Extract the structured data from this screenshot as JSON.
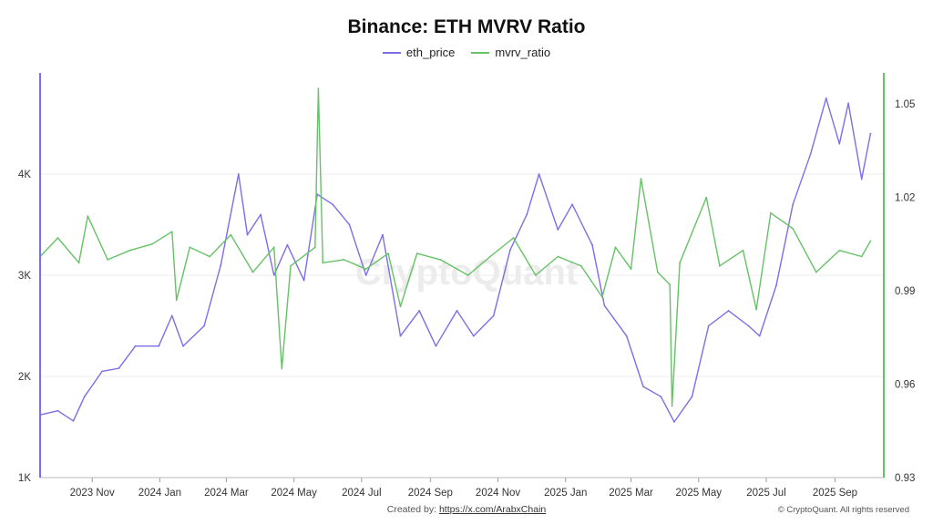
{
  "header": {
    "title": "Binance: ETH MVRV Ratio"
  },
  "legend": [
    {
      "label": "eth_price",
      "color": "#7b6fe6"
    },
    {
      "label": "mvrv_ratio",
      "color": "#66c266"
    }
  ],
  "watermark": "CryptoQuant",
  "footer": {
    "created_by_label": "Created by:",
    "created_by_link": "https://x.com/ArabxChain",
    "copyright": "© CryptoQuant. All rights reserved"
  },
  "chart_data": {
    "type": "line",
    "title": "Binance: ETH MVRV Ratio",
    "xlabel": "",
    "x_range": [
      "2023-09-15",
      "2025-10-15"
    ],
    "x_ticks": [
      "2023 Nov",
      "2024 Jan",
      "2024 Mar",
      "2024 May",
      "2024 Jul",
      "2024 Sep",
      "2024 Nov",
      "2025 Jan",
      "2025 Mar",
      "2025 May",
      "2025 Jul",
      "2025 Sep"
    ],
    "y_left": {
      "ticks": [
        "1K",
        "2K",
        "3K",
        "4K"
      ],
      "range": [
        1000,
        5000
      ]
    },
    "y_right": {
      "ticks": [
        "0.93",
        "0.96",
        "0.99",
        "1.02",
        "1.05"
      ],
      "range": [
        0.93,
        1.06
      ]
    },
    "grid": true,
    "legend_position": "top-center",
    "series": [
      {
        "name": "eth_price",
        "axis": "left",
        "color": "#7b6fe6",
        "points": [
          [
            "2023-09-15",
            1620
          ],
          [
            "2023-10-01",
            1660
          ],
          [
            "2023-10-15",
            1560
          ],
          [
            "2023-10-25",
            1800
          ],
          [
            "2023-11-10",
            2050
          ],
          [
            "2023-11-25",
            2080
          ],
          [
            "2023-12-10",
            2300
          ],
          [
            "2023-12-31",
            2300
          ],
          [
            "2024-01-12",
            2600
          ],
          [
            "2024-01-22",
            2300
          ],
          [
            "2024-02-10",
            2500
          ],
          [
            "2024-02-25",
            3100
          ],
          [
            "2024-03-12",
            4000
          ],
          [
            "2024-03-20",
            3400
          ],
          [
            "2024-04-01",
            3600
          ],
          [
            "2024-04-13",
            3000
          ],
          [
            "2024-04-25",
            3300
          ],
          [
            "2024-05-10",
            2950
          ],
          [
            "2024-05-22",
            3800
          ],
          [
            "2024-06-05",
            3700
          ],
          [
            "2024-06-20",
            3500
          ],
          [
            "2024-07-05",
            3000
          ],
          [
            "2024-07-20",
            3400
          ],
          [
            "2024-08-05",
            2400
          ],
          [
            "2024-08-22",
            2650
          ],
          [
            "2024-09-06",
            2300
          ],
          [
            "2024-09-25",
            2650
          ],
          [
            "2024-10-10",
            2400
          ],
          [
            "2024-10-28",
            2600
          ],
          [
            "2024-11-12",
            3250
          ],
          [
            "2024-11-27",
            3600
          ],
          [
            "2024-12-08",
            4000
          ],
          [
            "2024-12-25",
            3450
          ],
          [
            "2025-01-07",
            3700
          ],
          [
            "2025-01-25",
            3300
          ],
          [
            "2025-02-05",
            2700
          ],
          [
            "2025-02-25",
            2400
          ],
          [
            "2025-03-12",
            1900
          ],
          [
            "2025-03-28",
            1800
          ],
          [
            "2025-04-09",
            1550
          ],
          [
            "2025-04-25",
            1800
          ],
          [
            "2025-05-10",
            2500
          ],
          [
            "2025-05-28",
            2650
          ],
          [
            "2025-06-15",
            2500
          ],
          [
            "2025-06-25",
            2400
          ],
          [
            "2025-07-10",
            2900
          ],
          [
            "2025-07-25",
            3700
          ],
          [
            "2025-08-10",
            4200
          ],
          [
            "2025-08-24",
            4750
          ],
          [
            "2025-09-05",
            4300
          ],
          [
            "2025-09-13",
            4700
          ],
          [
            "2025-09-25",
            3950
          ],
          [
            "2025-10-03",
            4400
          ]
        ]
      },
      {
        "name": "mvrv_ratio",
        "axis": "right",
        "color": "#66c266",
        "points": [
          [
            "2023-09-15",
            1.001
          ],
          [
            "2023-10-01",
            1.007
          ],
          [
            "2023-10-20",
            0.999
          ],
          [
            "2023-10-28",
            1.014
          ],
          [
            "2023-11-15",
            1.0
          ],
          [
            "2023-12-05",
            1.003
          ],
          [
            "2023-12-25",
            1.005
          ],
          [
            "2024-01-12",
            1.009
          ],
          [
            "2024-01-16",
            0.987
          ],
          [
            "2024-01-28",
            1.004
          ],
          [
            "2024-02-15",
            1.001
          ],
          [
            "2024-03-05",
            1.008
          ],
          [
            "2024-03-25",
            0.996
          ],
          [
            "2024-04-13",
            1.004
          ],
          [
            "2024-04-20",
            0.965
          ],
          [
            "2024-04-28",
            0.998
          ],
          [
            "2024-05-20",
            1.004
          ],
          [
            "2024-05-23",
            1.055
          ],
          [
            "2024-05-27",
            0.999
          ],
          [
            "2024-06-15",
            1.0
          ],
          [
            "2024-07-05",
            0.997
          ],
          [
            "2024-07-25",
            1.002
          ],
          [
            "2024-08-05",
            0.985
          ],
          [
            "2024-08-20",
            1.002
          ],
          [
            "2024-09-10",
            1.0
          ],
          [
            "2024-10-05",
            0.995
          ],
          [
            "2024-10-25",
            1.001
          ],
          [
            "2024-11-15",
            1.007
          ],
          [
            "2024-12-05",
            0.995
          ],
          [
            "2024-12-25",
            1.001
          ],
          [
            "2025-01-15",
            0.998
          ],
          [
            "2025-02-03",
            0.988
          ],
          [
            "2025-02-15",
            1.004
          ],
          [
            "2025-03-01",
            0.997
          ],
          [
            "2025-03-10",
            1.026
          ],
          [
            "2025-03-25",
            0.996
          ],
          [
            "2025-04-05",
            0.992
          ],
          [
            "2025-04-07",
            0.953
          ],
          [
            "2025-04-14",
            0.999
          ],
          [
            "2025-05-08",
            1.02
          ],
          [
            "2025-05-20",
            0.998
          ],
          [
            "2025-06-10",
            1.003
          ],
          [
            "2025-06-22",
            0.984
          ],
          [
            "2025-07-05",
            1.015
          ],
          [
            "2025-07-25",
            1.01
          ],
          [
            "2025-08-15",
            0.996
          ],
          [
            "2025-09-05",
            1.003
          ],
          [
            "2025-09-25",
            1.001
          ],
          [
            "2025-10-03",
            1.006
          ]
        ]
      }
    ]
  }
}
